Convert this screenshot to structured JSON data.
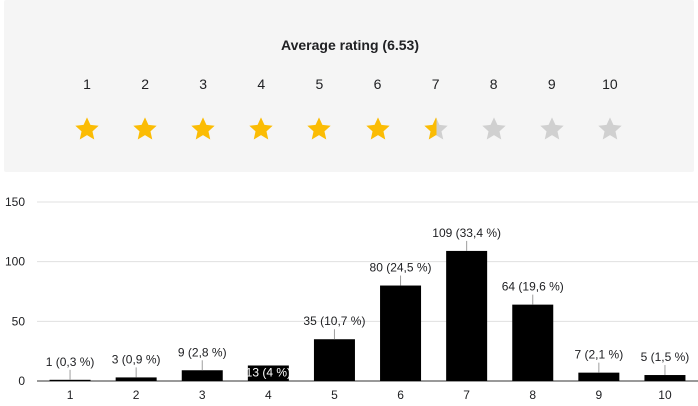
{
  "rating": {
    "title": "Average rating (6.53)",
    "average": 6.53,
    "scale": [
      "1",
      "2",
      "3",
      "4",
      "5",
      "6",
      "7",
      "8",
      "9",
      "10"
    ],
    "star_color_filled": "#fbbc04",
    "star_color_empty": "#d0d0d0",
    "star_icon": "star-icon"
  },
  "chart_data": {
    "type": "bar",
    "categories": [
      "1",
      "2",
      "3",
      "4",
      "5",
      "6",
      "7",
      "8",
      "9",
      "10"
    ],
    "values": [
      1,
      3,
      9,
      13,
      35,
      80,
      109,
      64,
      7,
      5
    ],
    "data_labels": [
      "1 (0,3 %)",
      "3 (0,9 %)",
      "9 (2,8 %)",
      "13 (4 %)",
      "35 (10,7 %)",
      "80 (24,5 %)",
      "109 (33,4 %)",
      "64 (19,6 %)",
      "7 (2,1 %)",
      "5 (1,5 %)"
    ],
    "ylim": [
      0,
      150
    ],
    "yticks": [
      "0",
      "50",
      "100",
      "150"
    ],
    "ytick_values": [
      0,
      50,
      100,
      150
    ],
    "grid": true,
    "bar_color": "#000000",
    "title": "",
    "xlabel": "",
    "ylabel": ""
  }
}
